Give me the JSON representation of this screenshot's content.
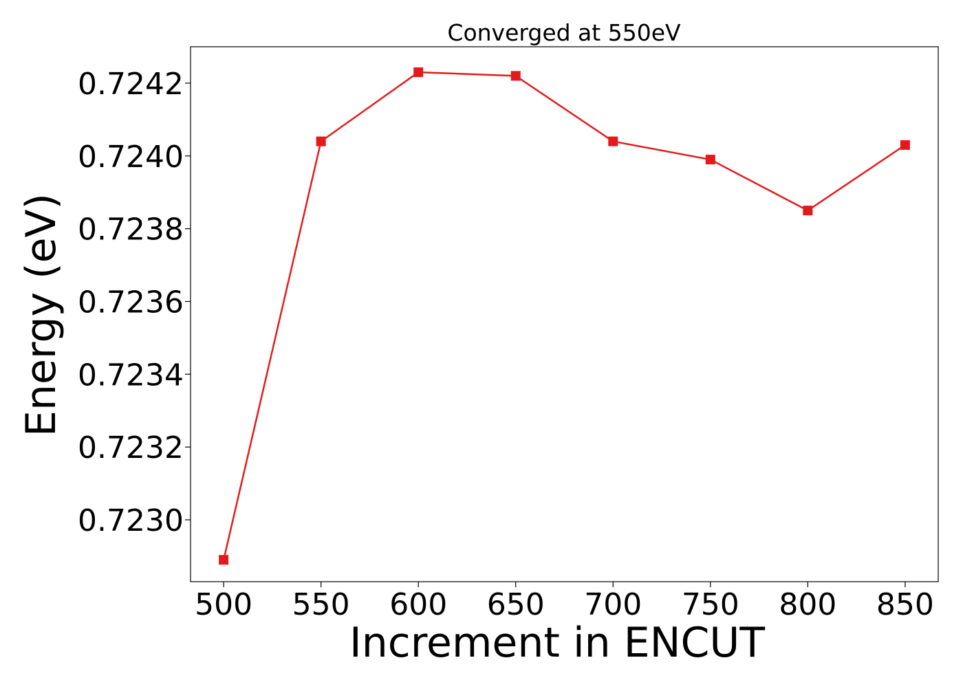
{
  "chart_data": {
    "type": "line",
    "title": "Converged at 550eV",
    "xlabel": "Increment in ENCUT",
    "ylabel": "Energy (eV)",
    "x": [
      500,
      550,
      600,
      650,
      700,
      750,
      800,
      850
    ],
    "series": [
      {
        "values": [
          0.72289,
          0.72404,
          0.72423,
          0.72422,
          0.72404,
          0.72399,
          0.72385,
          0.72403
        ],
        "color": "#e31a1c",
        "marker": "square"
      }
    ],
    "xlim": [
      483,
      867
    ],
    "ylim": [
      0.72283,
      0.7243
    ],
    "xticks": [
      "500",
      "550",
      "600",
      "650",
      "700",
      "750",
      "800",
      "850"
    ],
    "yticks": [
      "0.7230",
      "0.7232",
      "0.7234",
      "0.7236",
      "0.7238",
      "0.7240",
      "0.7242"
    ],
    "grid": false,
    "legend": "none"
  }
}
